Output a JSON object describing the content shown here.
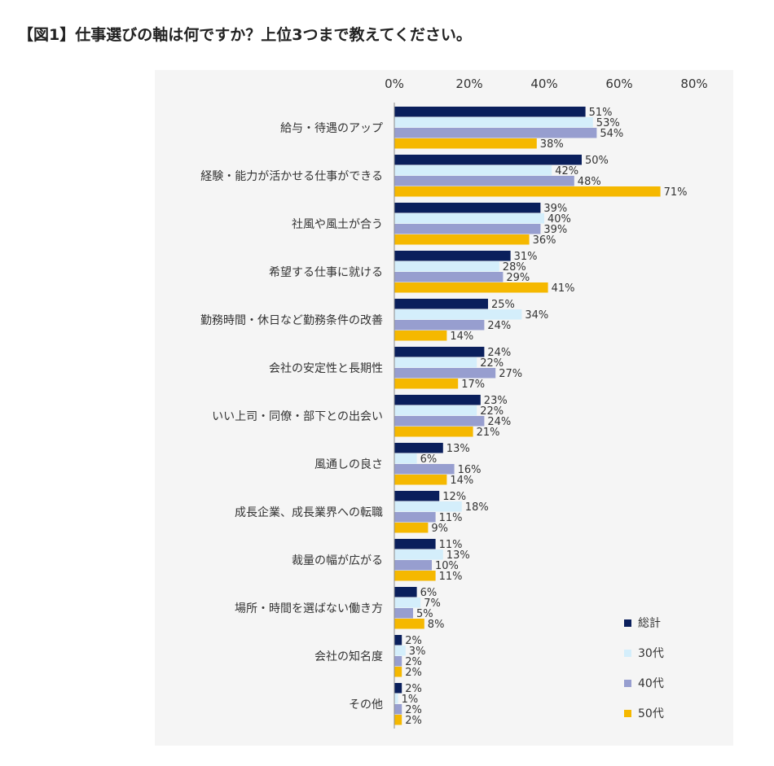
{
  "title": "【図1】仕事選びの軸は何ですか？上位3つまで教えてください。",
  "chart_data": {
    "type": "bar",
    "orientation": "horizontal",
    "title": "【図1】仕事選びの軸は何ですか？上位3つまで教えてください。",
    "xlabel": "",
    "ylabel": "",
    "xlim": [
      0,
      80
    ],
    "ticks": [
      "0%",
      "20%",
      "40%",
      "60%",
      "80%"
    ],
    "tick_values": [
      0,
      20,
      40,
      60,
      80
    ],
    "value_suffix": "%",
    "legend_position": "bottom-right",
    "grid": false,
    "categories": [
      "給与・待遇のアップ",
      "経験・能力が活かせる仕事ができる",
      "社風や風土が合う",
      "希望する仕事に就ける",
      "勤務時間・休日など勤務条件の改善",
      "会社の安定性と長期性",
      "いい上司・同僚・部下との出会い",
      "風通しの良さ",
      "成長企業、成長業界への転職",
      "裁量の幅が広がる",
      "場所・時間を選ばない働き方",
      "会社の知名度",
      "その他"
    ],
    "series": [
      {
        "name": "総計",
        "color": "#0a1f5c",
        "values": [
          51,
          50,
          39,
          31,
          25,
          24,
          23,
          13,
          12,
          11,
          6,
          2,
          2
        ]
      },
      {
        "name": "30代",
        "color": "#d4eefb",
        "values": [
          53,
          42,
          40,
          28,
          34,
          22,
          22,
          6,
          18,
          13,
          7,
          3,
          1
        ]
      },
      {
        "name": "40代",
        "color": "#979ecf",
        "values": [
          54,
          48,
          39,
          29,
          24,
          27,
          24,
          16,
          11,
          10,
          5,
          2,
          2
        ]
      },
      {
        "name": "50代",
        "color": "#f5b800",
        "values": [
          38,
          71,
          36,
          41,
          14,
          17,
          21,
          14,
          9,
          11,
          8,
          2,
          2
        ]
      }
    ]
  }
}
